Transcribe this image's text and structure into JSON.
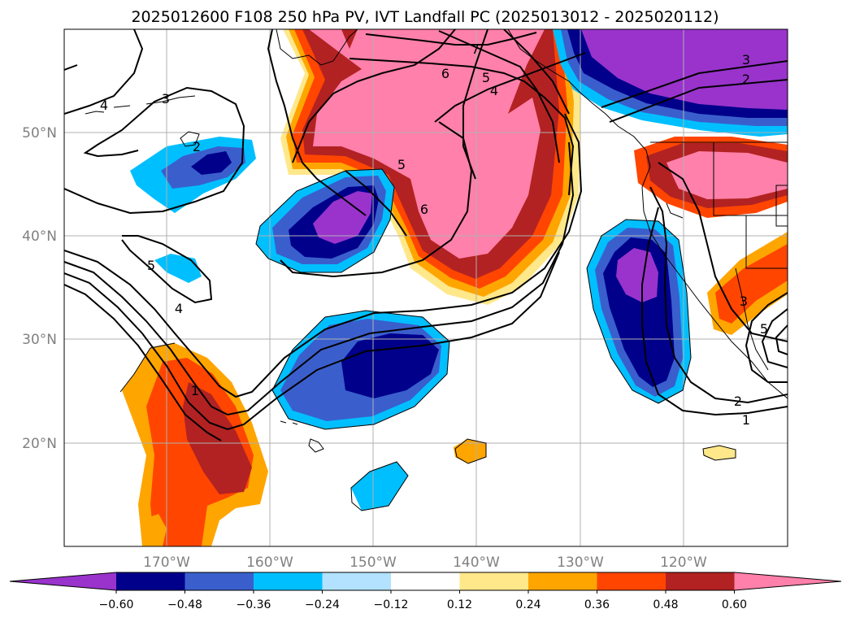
{
  "title": "2025012600 F108 250 hPa PV, IVT Landfall PC (2025013012 - 2025020112)",
  "map": {
    "lon_ticks": [
      "170°W",
      "160°W",
      "150°W",
      "140°W",
      "130°W",
      "120°W"
    ],
    "lat_ticks": [
      "50°N",
      "40°N",
      "30°N",
      "20°N"
    ]
  },
  "colorbar": {
    "tick_labels": [
      "−0.60",
      "−0.48",
      "−0.36",
      "−0.24",
      "−0.12",
      "0.12",
      "0.24",
      "0.36",
      "0.48",
      "0.60"
    ],
    "colors": [
      "#9933cc",
      "#00008b",
      "#3a5fcd",
      "#00bfff",
      "#b2e2ff",
      "#ffffff",
      "#ffe88a",
      "#ffa500",
      "#ff4500",
      "#b22222",
      "#ff80aa"
    ]
  },
  "contour_labels": [
    "4",
    "3",
    "2",
    "7",
    "6",
    "5",
    "4",
    "3",
    "2",
    "5",
    "6",
    "5",
    "4",
    "1",
    "3",
    "5",
    "2",
    "1"
  ]
}
